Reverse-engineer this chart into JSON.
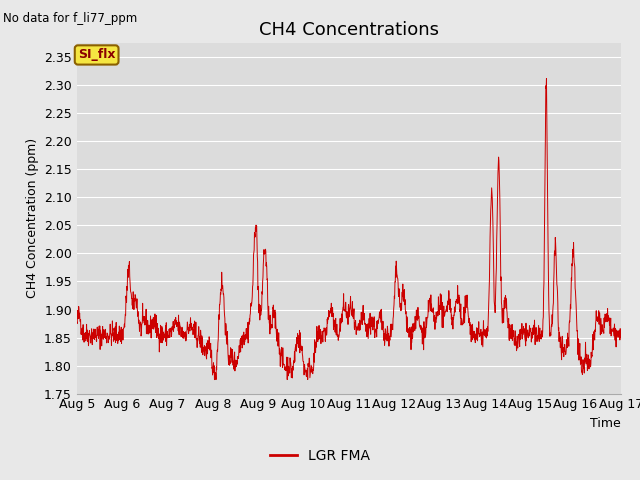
{
  "title": "CH4 Concentrations",
  "xlabel": "Time",
  "ylabel": "CH4 Concentration (ppm)",
  "top_left_text": "No data for f_li77_ppm",
  "legend_label": "LGR FMA",
  "legend_box_label": "SI_flx",
  "ylim": [
    1.75,
    2.375
  ],
  "yticks": [
    1.75,
    1.8,
    1.85,
    1.9,
    1.95,
    2.0,
    2.05,
    2.1,
    2.15,
    2.2,
    2.25,
    2.3,
    2.35
  ],
  "xtick_labels": [
    "Aug 5",
    "Aug 6",
    "Aug 7",
    "Aug 8",
    "Aug 9",
    "Aug 10",
    "Aug 11",
    "Aug 12",
    "Aug 13",
    "Aug 14",
    "Aug 15",
    "Aug 16",
    "Aug 17"
  ],
  "line_color": "#cc0000",
  "background_color": "#e8e8e8",
  "plot_bg_color": "#dcdcdc",
  "grid_color": "#ffffff",
  "title_fontsize": 13,
  "label_fontsize": 9,
  "tick_fontsize": 9
}
